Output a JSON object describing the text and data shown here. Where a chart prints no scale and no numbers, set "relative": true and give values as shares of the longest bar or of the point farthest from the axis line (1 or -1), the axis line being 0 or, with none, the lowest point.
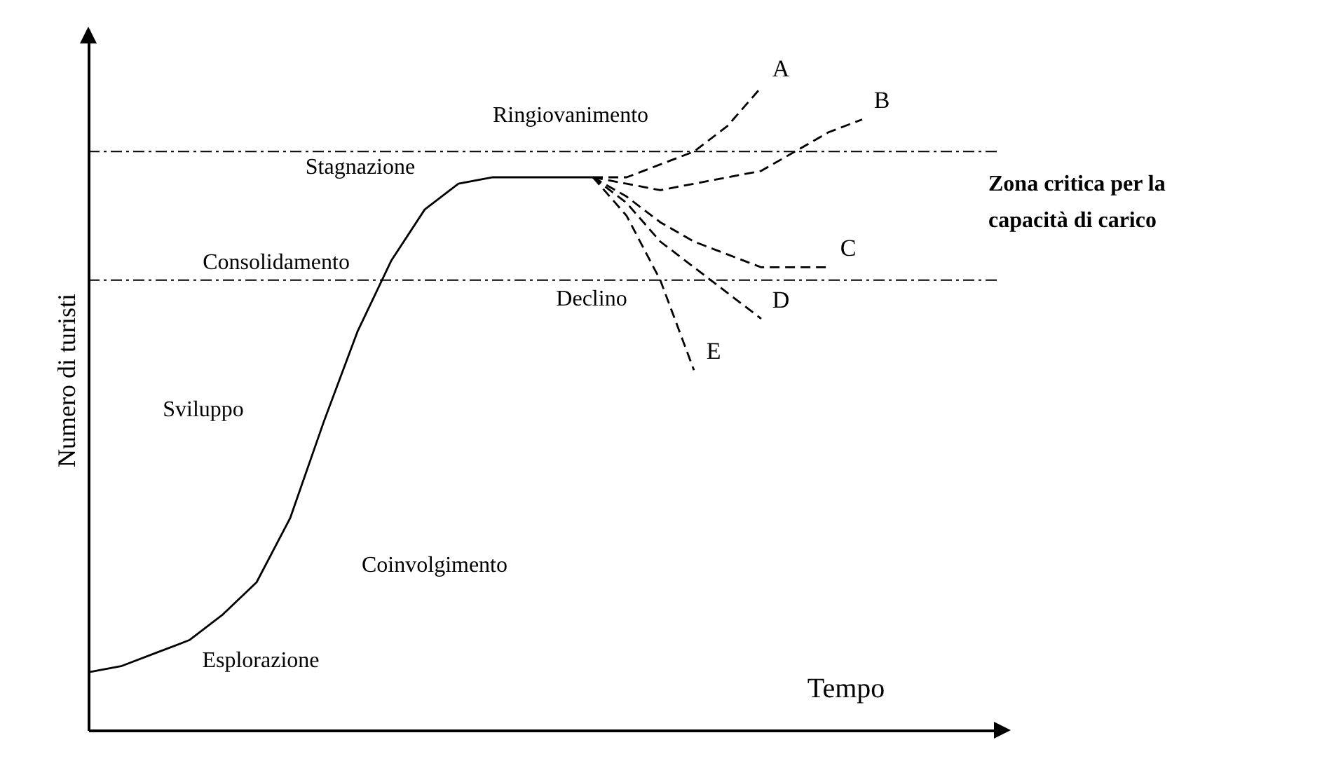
{
  "chart_data": {
    "type": "line",
    "relative": true,
    "xlabel": "Tempo",
    "ylabel": "Numero di turisti",
    "categories": [
      null,
      null,
      null,
      null,
      null,
      null,
      null,
      null,
      null,
      null,
      null,
      null,
      null,
      null,
      null,
      null,
      null,
      null,
      null,
      null,
      null,
      null,
      null,
      null,
      null,
      null,
      null,
      null
    ],
    "series": [
      {
        "color": "#000000",
        "line_style": "solid",
        "values": [
          0.09,
          0.1,
          0.12,
          0.14,
          0.18,
          0.23,
          0.33,
          0.48,
          0.62,
          0.73,
          0.81,
          0.85,
          0.86,
          0.86,
          0.86,
          0.86,
          null,
          null,
          null,
          null,
          null,
          null,
          null,
          null,
          null,
          null,
          null,
          null
        ]
      },
      {
        "name": "A",
        "color": "#000000",
        "line_style": "dashed",
        "values": [
          null,
          null,
          null,
          null,
          null,
          null,
          null,
          null,
          null,
          null,
          null,
          null,
          null,
          null,
          null,
          0.86,
          0.86,
          0.88,
          0.9,
          0.94,
          1.0,
          null,
          null,
          null,
          null,
          null,
          null,
          null
        ]
      },
      {
        "name": "B",
        "color": "#000000",
        "line_style": "dashed",
        "values": [
          null,
          null,
          null,
          null,
          null,
          null,
          null,
          null,
          null,
          null,
          null,
          null,
          null,
          null,
          null,
          0.86,
          0.85,
          0.84,
          0.85,
          0.86,
          0.87,
          0.9,
          0.93,
          0.95,
          null,
          null,
          null,
          null
        ]
      },
      {
        "name": "C",
        "color": "#000000",
        "line_style": "dashed",
        "values": [
          null,
          null,
          null,
          null,
          null,
          null,
          null,
          null,
          null,
          null,
          null,
          null,
          null,
          null,
          null,
          0.86,
          0.83,
          0.79,
          0.76,
          0.74,
          0.72,
          0.72,
          0.72,
          null,
          null,
          null,
          null,
          null
        ]
      },
      {
        "name": "D",
        "color": "#000000",
        "line_style": "dashed",
        "values": [
          null,
          null,
          null,
          null,
          null,
          null,
          null,
          null,
          null,
          null,
          null,
          null,
          null,
          null,
          null,
          0.86,
          0.82,
          0.76,
          0.72,
          0.68,
          0.64,
          null,
          null,
          null,
          null,
          null,
          null,
          null
        ]
      },
      {
        "name": "E",
        "color": "#000000",
        "line_style": "dashed",
        "values": [
          null,
          null,
          null,
          null,
          null,
          null,
          null,
          null,
          null,
          null,
          null,
          null,
          null,
          null,
          null,
          0.86,
          0.8,
          0.7,
          0.56,
          null,
          null,
          null,
          null,
          null,
          null,
          null,
          null,
          null
        ]
      }
    ],
    "ref_lines": [
      {
        "axis": "y",
        "value": 0.9,
        "line_style": "dashed",
        "color": "#000000"
      },
      {
        "axis": "y",
        "value": 0.7,
        "line_style": "dashed",
        "color": "#000000"
      }
    ],
    "annotations": [
      "Ringiovanimento",
      "Stagnazione",
      "Consolidamento",
      "Declino",
      "Sviluppo",
      "Coinvolgimento",
      "Esplorazione",
      "Zona critica per la capacità di carico"
    ]
  }
}
